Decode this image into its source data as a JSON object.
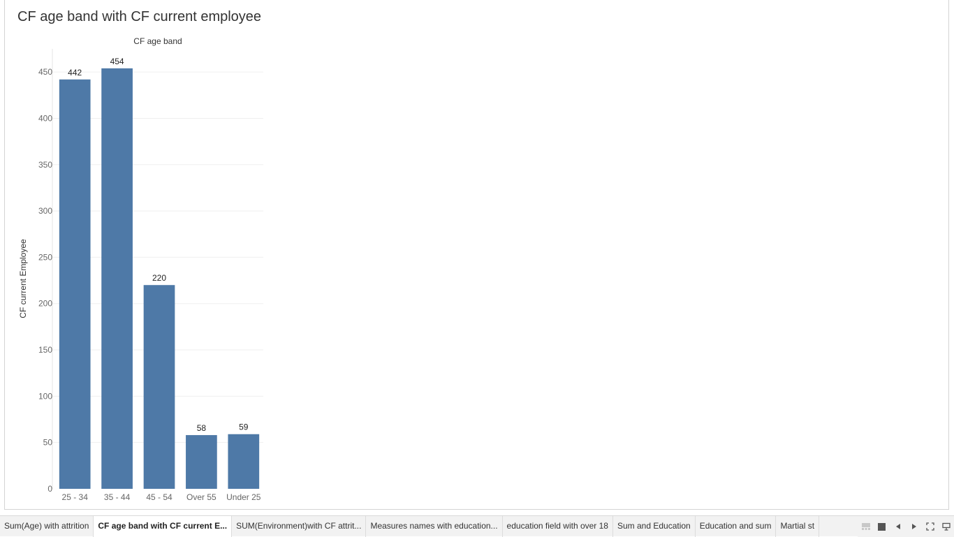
{
  "sheet": {
    "title": "CF age band with CF current employee"
  },
  "chart_data": {
    "type": "bar",
    "column_header": "CF age band",
    "ylabel": "CF current Employee",
    "xlabel": "",
    "categories": [
      "25 - 34",
      "35 - 44",
      "45 - 54",
      "Over 55",
      "Under 25"
    ],
    "values": [
      442,
      454,
      220,
      58,
      59
    ],
    "ylim": [
      0,
      475
    ],
    "yticks": [
      0,
      50,
      100,
      150,
      200,
      250,
      300,
      350,
      400,
      450
    ],
    "grid": true,
    "bar_color": "#4e79a7"
  },
  "tabbar": {
    "tabs": [
      {
        "label": "Sum(Age) with attrition",
        "active": false
      },
      {
        "label": "CF age band with CF current E...",
        "active": true
      },
      {
        "label": "SUM(Environment)with CF attrit...",
        "active": false
      },
      {
        "label": "Measures names with education...",
        "active": false
      },
      {
        "label": "education field with over 18",
        "active": false
      },
      {
        "label": "Sum and Education",
        "active": false
      },
      {
        "label": "Education and sum",
        "active": false
      },
      {
        "label": "Martial st",
        "active": false
      }
    ],
    "controls": [
      "filmstrip-view-icon",
      "tabs-view-icon",
      "prev-sheet-icon",
      "next-sheet-icon",
      "fullscreen-icon",
      "presentation-icon"
    ]
  }
}
